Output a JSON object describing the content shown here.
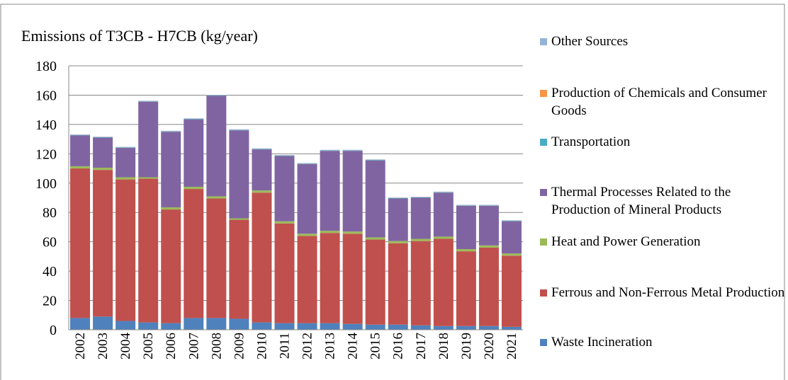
{
  "chart_data": {
    "type": "stacked_bar",
    "title": "Emissions of T3CB - H7CB (kg/year)",
    "categories": [
      "2002",
      "2003",
      "2004",
      "2005",
      "2006",
      "2007",
      "2008",
      "2009",
      "2010",
      "2011",
      "2012",
      "2013",
      "2014",
      "2015",
      "2016",
      "2017",
      "2018",
      "2019",
      "2020",
      "2021"
    ],
    "ylim": [
      0,
      180
    ],
    "yticks": [
      0,
      20,
      40,
      60,
      80,
      100,
      120,
      140,
      160,
      180
    ],
    "grid": true,
    "series": [
      {
        "name": "Waste Incineration",
        "color": "#4f81bd",
        "values": [
          8,
          9,
          6,
          5,
          4.5,
          8,
          8,
          7.5,
          5,
          4.5,
          4.5,
          4.5,
          4,
          3.5,
          3.5,
          3,
          2.5,
          2.5,
          2.5,
          2
        ]
      },
      {
        "name": "Ferrous and Non-Ferrous Metal Production",
        "color": "#c0504d",
        "values": [
          102,
          100,
          96.5,
          98,
          77.5,
          88,
          81.5,
          67.5,
          88.5,
          68,
          59.5,
          61.5,
          61.5,
          58,
          55.5,
          57.5,
          59.5,
          51,
          53.5,
          48.5
        ]
      },
      {
        "name": "Heat and Power Generation",
        "color": "#9bbb59",
        "values": [
          1.5,
          1.5,
          1.5,
          1,
          1.5,
          1.5,
          1.5,
          1,
          1.5,
          1.5,
          1.5,
          1.5,
          1.5,
          1.5,
          1.5,
          1.5,
          1.5,
          1.5,
          1.5,
          1.5
        ]
      },
      {
        "name": "Thermal Processes Related to the Production of Mineral Products",
        "color": "#8064a2",
        "values": [
          21,
          20.5,
          20,
          51.5,
          51.5,
          46,
          68.5,
          60,
          28,
          44.5,
          47.5,
          54.5,
          55,
          52.5,
          29,
          28,
          30,
          29.5,
          27,
          22
        ]
      },
      {
        "name": "Transportation",
        "color": "#4bacc6",
        "values": [
          0.3,
          0.3,
          0.3,
          0.3,
          0.3,
          0.3,
          0.3,
          0.3,
          0.3,
          0.3,
          0.3,
          0.3,
          0.3,
          0.3,
          0.3,
          0.3,
          0.3,
          0.3,
          0.3,
          0.3
        ]
      },
      {
        "name": "Production of Chemicals and Consumer Goods",
        "color": "#f79646",
        "values": [
          0.1,
          0.1,
          0.1,
          0.1,
          0.1,
          0.1,
          0.1,
          0.1,
          0.1,
          0.1,
          0.1,
          0.1,
          0.1,
          0.1,
          0.1,
          0.1,
          0.1,
          0.1,
          0.1,
          0.1
        ]
      },
      {
        "name": "Other Sources",
        "color": "#95b3d7",
        "values": [
          0.3,
          0.3,
          0.3,
          0.3,
          0.3,
          0.3,
          0.3,
          0.3,
          0.3,
          0.3,
          0.3,
          0.3,
          0.3,
          0.3,
          0.3,
          0.3,
          0.3,
          0.3,
          0.3,
          0.3
        ]
      }
    ]
  }
}
